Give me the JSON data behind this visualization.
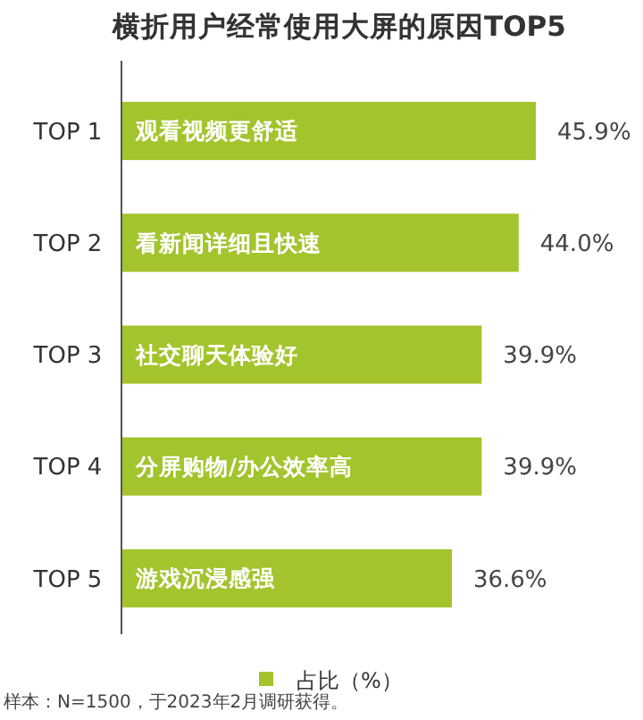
{
  "chart_data": {
    "type": "bar",
    "orientation": "horizontal",
    "title": "横折用户经常使用大屏的原因TOP5",
    "categories": [
      "TOP 1",
      "TOP 2",
      "TOP 3",
      "TOP 4",
      "TOP 5"
    ],
    "series": [
      {
        "name": "占比（%）",
        "color": "#a3c42c",
        "values": [
          45.9,
          44.0,
          39.9,
          39.9,
          36.6
        ],
        "value_labels": [
          "45.9%",
          "44.0%",
          "39.9%",
          "39.9%",
          "36.6%"
        ]
      }
    ],
    "legend": "bottom",
    "grid": false,
    "tick_labels": "y",
    "annotations": [
      "观看视频更舒适",
      "看新闻详细且快速",
      "社交聊天体验好",
      "分屏购物/办公效率高",
      "游戏沉浸感强",
      "样本：N=1500，于2023年2月调研获得。"
    ]
  }
}
